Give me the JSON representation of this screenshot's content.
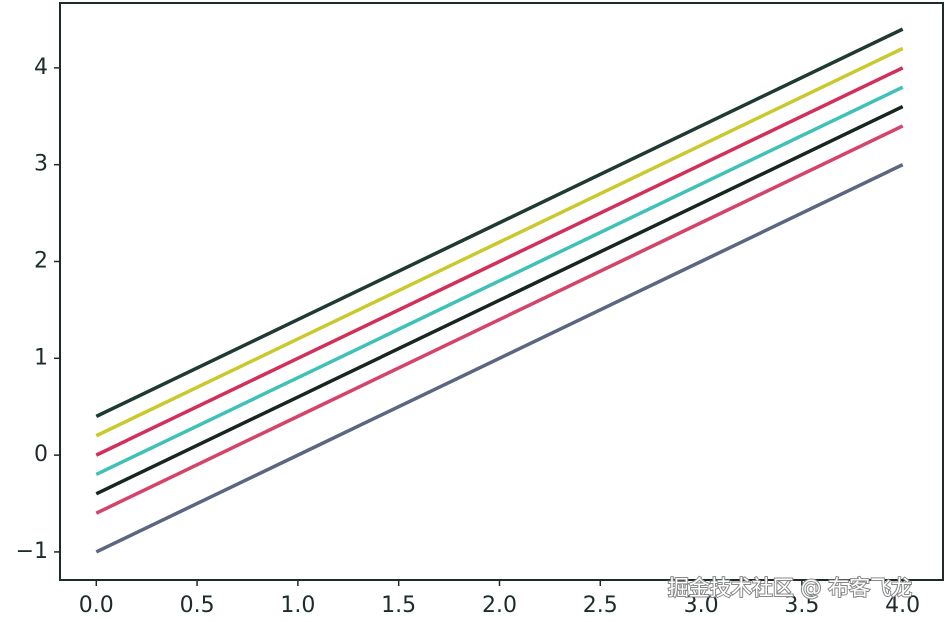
{
  "chart_data": {
    "type": "line",
    "x": [
      0,
      1,
      2,
      3,
      4
    ],
    "series": [
      {
        "color": "#1e3a33",
        "values": [
          0.4,
          1.4,
          2.4,
          3.4,
          4.4
        ]
      },
      {
        "color": "#c9c92e",
        "values": [
          0.2,
          1.2,
          2.2,
          3.2,
          4.2
        ]
      },
      {
        "color": "#d2305a",
        "values": [
          0,
          1,
          2,
          3,
          4
        ]
      },
      {
        "color": "#3fc1b8",
        "values": [
          -0.2,
          0.8,
          1.8,
          2.8,
          3.8
        ]
      },
      {
        "color": "#17261f",
        "values": [
          -0.4,
          0.6,
          1.6,
          2.6,
          3.6
        ]
      },
      {
        "color": "#d4436a",
        "values": [
          -0.6,
          0.4,
          1.4,
          2.4,
          3.4
        ]
      },
      {
        "color": "#5b6680",
        "values": [
          -1,
          0,
          1,
          2,
          3
        ]
      }
    ],
    "xlim": [
      -0.18,
      4.2
    ],
    "ylim": [
      -1.29,
      4.67
    ],
    "xticks": [
      {
        "value": 0,
        "label": "0.0"
      },
      {
        "value": 0.5,
        "label": "0.5"
      },
      {
        "value": 1,
        "label": "1.0"
      },
      {
        "value": 1.5,
        "label": "1.5"
      },
      {
        "value": 2,
        "label": "2.0"
      },
      {
        "value": 2.5,
        "label": "2.5"
      },
      {
        "value": 3,
        "label": "3.0"
      },
      {
        "value": 3.5,
        "label": "3.5"
      },
      {
        "value": 4,
        "label": "4.0"
      }
    ],
    "yticks": [
      {
        "value": -1,
        "label": "−1"
      },
      0,
      1,
      2,
      3,
      4
    ],
    "annotation": "掘金技术社区 @ 布客飞龙"
  }
}
